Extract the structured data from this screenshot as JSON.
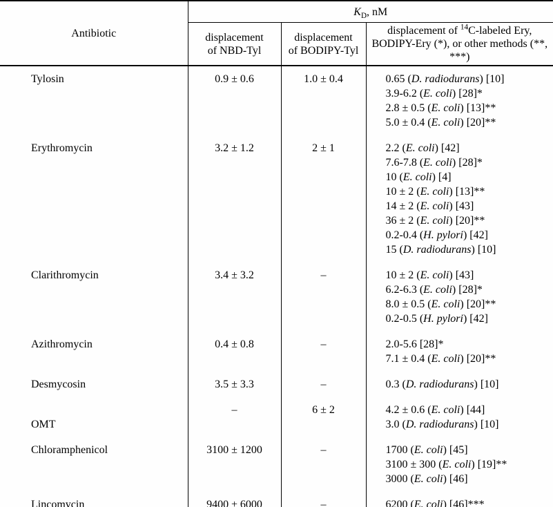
{
  "header": {
    "antibiotic": "Antibiotic",
    "kd": [
      [
        {
          "i": "K"
        },
        {
          "sub": "D"
        },
        {
          "t": ", nM"
        }
      ]
    ],
    "nbd": "displacement\nof NBD-Tyl",
    "bodipy": "displacement\nof BODIPY-Tyl",
    "other": [
      [
        {
          "t": "displacement of "
        },
        {
          "sup": "14"
        },
        {
          "t": "C-labeled Ery,"
        }
      ],
      [
        {
          "t": "BODIPY-Ery (*), or other methods (**, ***)"
        }
      ]
    ]
  },
  "rows": [
    {
      "antibiotic": "Tylosin",
      "nbd": "0.9 ± 0.6",
      "bodipy": "1.0 ± 0.4",
      "other": [
        [
          {
            "t": "0.65 ("
          },
          {
            "i": "D. radiodurans"
          },
          {
            "t": ") [10]"
          }
        ],
        [
          {
            "t": "3.9-6.2 ("
          },
          {
            "i": "E. coli"
          },
          {
            "t": ") [28]*"
          }
        ],
        [
          {
            "t": "2.8 ± 0.5 ("
          },
          {
            "i": "E. coli"
          },
          {
            "t": ") [13]**"
          }
        ],
        [
          {
            "t": "5.0 ± 0.4 ("
          },
          {
            "i": "E. coli"
          },
          {
            "t": ") [20]**"
          }
        ]
      ]
    },
    {
      "antibiotic": "Erythromycin",
      "nbd": "3.2 ± 1.2",
      "bodipy": "2 ± 1",
      "other": [
        [
          {
            "t": "2.2 ("
          },
          {
            "i": "E. coli"
          },
          {
            "t": ") [42]"
          }
        ],
        [
          {
            "t": "7.6-7.8 ("
          },
          {
            "i": "E. coli"
          },
          {
            "t": ") [28]*"
          }
        ],
        [
          {
            "t": "10 ("
          },
          {
            "i": "E. coli"
          },
          {
            "t": ") [4]"
          }
        ],
        [
          {
            "t": "10 ± 2 ("
          },
          {
            "i": "E. coli"
          },
          {
            "t": ") [13]**"
          }
        ],
        [
          {
            "t": "14 ± 2 ("
          },
          {
            "i": "E. coli"
          },
          {
            "t": ") [43]"
          }
        ],
        [
          {
            "t": "36 ± 2 ("
          },
          {
            "i": "E. coli"
          },
          {
            "t": ") [20]**"
          }
        ],
        [
          {
            "t": "0.2-0.4 ("
          },
          {
            "i": "H. pylori"
          },
          {
            "t": ") [42]"
          }
        ],
        [
          {
            "t": "15 ("
          },
          {
            "i": "D. radiodurans"
          },
          {
            "t": ") [10]"
          }
        ]
      ]
    },
    {
      "antibiotic": "Clarithromycin",
      "nbd": "3.4 ± 3.2",
      "bodipy": "–",
      "other": [
        [
          {
            "t": "10 ± 2 ("
          },
          {
            "i": "E. coli"
          },
          {
            "t": ") [43]"
          }
        ],
        [
          {
            "t": "6.2-6.3 ("
          },
          {
            "i": "E. coli"
          },
          {
            "t": ") [28]*"
          }
        ],
        [
          {
            "t": "8.0 ± 0.5 ("
          },
          {
            "i": "E. coli"
          },
          {
            "t": ") [20]**"
          }
        ],
        [
          {
            "t": "0.2-0.5 ("
          },
          {
            "i": "H. pylori"
          },
          {
            "t": ") [42]"
          }
        ]
      ]
    },
    {
      "antibiotic": "Azithromycin",
      "nbd": "0.4 ± 0.8",
      "bodipy": "–",
      "other": [
        [
          {
            "t": "2.0-5.6 [28]*"
          }
        ],
        [
          {
            "t": "7.1 ± 0.4 ("
          },
          {
            "i": "E. coli"
          },
          {
            "t": ") [20]**"
          }
        ]
      ]
    },
    {
      "antibiotic": "Desmycosin",
      "nbd": "3.5 ± 3.3",
      "bodipy": "–",
      "other": [
        [
          {
            "t": "0.3 ("
          },
          {
            "i": "D. radiodurans"
          },
          {
            "t": ") [10]"
          }
        ]
      ]
    },
    {
      "antibiotic": "\nOMT",
      "nbd": "–",
      "bodipy": "6 ± 2",
      "other": [
        [
          {
            "t": "4.2 ± 0.6 ("
          },
          {
            "i": "E. coli"
          },
          {
            "t": ") [44]"
          }
        ],
        [
          {
            "t": "3.0 ("
          },
          {
            "i": "D. radiodurans"
          },
          {
            "t": ") [10]"
          }
        ]
      ]
    },
    {
      "antibiotic": "Chloramphenicol",
      "nbd": "3100 ± 1200",
      "bodipy": "–",
      "other": [
        [
          {
            "t": "1700 ("
          },
          {
            "i": "E. coli"
          },
          {
            "t": ") [45]"
          }
        ],
        [
          {
            "t": "3100 ± 300 ("
          },
          {
            "i": "E. coli"
          },
          {
            "t": ") [19]**"
          }
        ],
        [
          {
            "t": "3000 ("
          },
          {
            "i": "E. coli"
          },
          {
            "t": ") [46]"
          }
        ]
      ]
    },
    {
      "antibiotic": "Lincomycin",
      "nbd": "9400 ± 6000",
      "bodipy": "–",
      "other": [
        [
          {
            "t": "6200 ("
          },
          {
            "i": "E. coli"
          },
          {
            "t": ") [46]***"
          }
        ]
      ]
    }
  ]
}
